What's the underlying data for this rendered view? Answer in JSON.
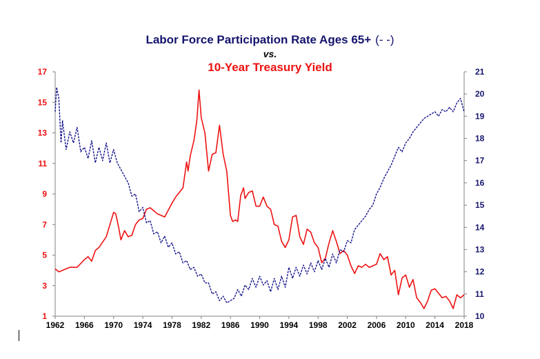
{
  "title": {
    "line1": "Labor Force Participation Rate Ages 65+",
    "line1_marker": "(- -)",
    "line2": "vs.",
    "line3": "10-Year Treasury Yield"
  },
  "colors": {
    "treasury": "#ee1111",
    "participation": "#14148c",
    "title_blue": "#14146e",
    "axis": "#808080"
  },
  "chart_data": {
    "type": "line",
    "title": "Labor Force Participation Rate Ages 65+ (- -) vs. 10-Year Treasury Yield",
    "x_ticks": [
      "1962",
      "1966",
      "1970",
      "1974",
      "1978",
      "1982",
      "1986",
      "1990",
      "1994",
      "1998",
      "2002",
      "2006",
      "2010",
      "2014",
      "2018"
    ],
    "xlim": [
      1962,
      2018
    ],
    "left_axis": {
      "ylim": [
        1,
        17
      ],
      "ticks": [
        "1",
        "3",
        "5",
        "7",
        "9",
        "11",
        "13",
        "15",
        "17"
      ]
    },
    "right_axis": {
      "ylim": [
        10,
        21
      ],
      "ticks": [
        "10",
        "11",
        "12",
        "13",
        "14",
        "15",
        "16",
        "17",
        "18",
        "19",
        "20",
        "21"
      ]
    },
    "grid": false,
    "series": [
      {
        "name": "10-Year Treasury Yield",
        "axis": "left",
        "style": "solid",
        "x": [
          1962.0,
          1962.5,
          1963.0,
          1964.0,
          1965.0,
          1966.0,
          1966.5,
          1967.0,
          1967.5,
          1968.0,
          1969.0,
          1969.5,
          1970.0,
          1970.3,
          1970.7,
          1971.0,
          1971.5,
          1972.0,
          1972.5,
          1973.0,
          1973.5,
          1974.0,
          1974.5,
          1975.0,
          1975.5,
          1976.0,
          1977.0,
          1978.0,
          1978.5,
          1979.0,
          1979.5,
          1980.0,
          1980.2,
          1980.5,
          1981.0,
          1981.4,
          1981.7,
          1982.0,
          1982.5,
          1983.0,
          1983.5,
          1984.0,
          1984.5,
          1985.0,
          1985.5,
          1986.0,
          1986.3,
          1986.7,
          1987.0,
          1987.4,
          1987.8,
          1988.0,
          1988.5,
          1989.0,
          1989.5,
          1990.0,
          1990.5,
          1991.0,
          1991.5,
          1992.0,
          1992.5,
          1993.0,
          1993.5,
          1994.0,
          1994.5,
          1995.0,
          1995.5,
          1996.0,
          1996.5,
          1997.0,
          1997.5,
          1998.0,
          1998.5,
          1999.0,
          1999.5,
          2000.0,
          2000.5,
          2001.0,
          2001.5,
          2002.0,
          2002.5,
          2003.0,
          2003.5,
          2004.0,
          2004.5,
          2005.0,
          2005.5,
          2006.0,
          2006.5,
          2007.0,
          2007.5,
          2008.0,
          2008.5,
          2009.0,
          2009.5,
          2010.0,
          2010.5,
          2011.0,
          2011.5,
          2012.0,
          2012.5,
          2013.0,
          2013.5,
          2014.0,
          2014.5,
          2015.0,
          2015.5,
          2016.0,
          2016.5,
          2017.0,
          2017.5,
          2018.0
        ],
        "values": [
          4.1,
          3.9,
          4.0,
          4.2,
          4.2,
          4.7,
          4.9,
          4.6,
          5.3,
          5.5,
          6.2,
          7.0,
          7.8,
          7.7,
          6.8,
          6.0,
          6.6,
          6.2,
          6.3,
          7.0,
          7.3,
          7.4,
          8.0,
          8.1,
          7.9,
          7.7,
          7.5,
          8.4,
          8.8,
          9.1,
          9.4,
          11.1,
          10.5,
          11.5,
          12.5,
          13.8,
          15.8,
          14.0,
          13.0,
          10.5,
          11.6,
          11.7,
          13.5,
          11.6,
          10.5,
          7.6,
          7.2,
          7.3,
          7.2,
          8.9,
          9.4,
          8.7,
          9.1,
          9.2,
          8.2,
          8.2,
          8.8,
          8.2,
          8.0,
          7.0,
          6.9,
          5.9,
          5.5,
          6.0,
          7.5,
          7.6,
          6.2,
          5.7,
          6.7,
          6.5,
          5.8,
          5.5,
          4.5,
          4.8,
          5.8,
          6.6,
          5.9,
          5.1,
          5.3,
          5.0,
          4.3,
          3.8,
          4.3,
          4.2,
          4.4,
          4.2,
          4.3,
          4.4,
          5.1,
          4.7,
          4.9,
          3.7,
          4.0,
          2.4,
          3.5,
          3.7,
          2.9,
          3.4,
          2.2,
          1.9,
          1.5,
          2.0,
          2.7,
          2.8,
          2.5,
          2.2,
          2.3,
          2.0,
          1.5,
          2.4,
          2.2,
          2.4
        ]
      },
      {
        "name": "Labor Force Participation Rate Ages 65+",
        "axis": "right",
        "style": "dashed",
        "x": [
          1962.0,
          1962.2,
          1962.5,
          1962.8,
          1963.0,
          1963.5,
          1964.0,
          1964.5,
          1965.0,
          1965.5,
          1966.0,
          1966.5,
          1967.0,
          1967.5,
          1968.0,
          1968.5,
          1969.0,
          1969.5,
          1970.0,
          1970.5,
          1971.0,
          1971.5,
          1972.0,
          1972.5,
          1973.0,
          1973.5,
          1974.0,
          1974.5,
          1975.0,
          1975.5,
          1976.0,
          1976.5,
          1977.0,
          1977.5,
          1978.0,
          1978.5,
          1979.0,
          1979.5,
          1980.0,
          1980.5,
          1981.0,
          1981.5,
          1982.0,
          1982.5,
          1983.0,
          1983.5,
          1984.0,
          1984.5,
          1985.0,
          1985.5,
          1986.0,
          1986.5,
          1987.0,
          1987.5,
          1988.0,
          1988.5,
          1989.0,
          1989.5,
          1990.0,
          1990.5,
          1991.0,
          1991.5,
          1992.0,
          1992.5,
          1993.0,
          1993.5,
          1994.0,
          1994.5,
          1995.0,
          1995.5,
          1996.0,
          1996.5,
          1997.0,
          1997.5,
          1998.0,
          1998.5,
          1999.0,
          1999.5,
          2000.0,
          2000.5,
          2001.0,
          2001.5,
          2002.0,
          2002.5,
          2003.0,
          2003.5,
          2004.0,
          2004.5,
          2005.0,
          2005.5,
          2006.0,
          2006.5,
          2007.0,
          2007.5,
          2008.0,
          2008.5,
          2009.0,
          2009.5,
          2010.0,
          2010.5,
          2011.0,
          2011.5,
          2012.0,
          2012.5,
          2013.0,
          2013.5,
          2014.0,
          2014.5,
          2015.0,
          2015.5,
          2016.0,
          2016.5,
          2017.0,
          2017.5,
          2018.0
        ],
        "values": [
          19.2,
          20.3,
          19.8,
          17.8,
          18.8,
          17.5,
          18.3,
          17.8,
          18.5,
          17.4,
          17.6,
          17.1,
          17.9,
          16.9,
          17.6,
          17.0,
          17.8,
          16.9,
          17.5,
          16.9,
          16.6,
          16.3,
          16.0,
          15.4,
          15.5,
          14.7,
          14.9,
          14.2,
          14.3,
          13.7,
          13.8,
          13.3,
          13.6,
          13.1,
          13.3,
          12.8,
          12.9,
          12.4,
          12.5,
          12.1,
          12.2,
          11.8,
          11.9,
          11.5,
          11.5,
          11.0,
          11.1,
          10.7,
          10.9,
          10.6,
          10.7,
          10.8,
          11.2,
          10.9,
          11.4,
          11.2,
          11.7,
          11.3,
          11.8,
          11.4,
          11.6,
          11.1,
          11.7,
          11.2,
          11.8,
          11.3,
          12.2,
          11.7,
          12.2,
          11.8,
          12.3,
          11.9,
          12.4,
          12.0,
          12.5,
          12.1,
          12.6,
          12.2,
          12.8,
          12.4,
          13.0,
          12.9,
          13.4,
          13.3,
          13.9,
          14.1,
          14.3,
          14.5,
          14.8,
          15.0,
          15.5,
          15.8,
          16.2,
          16.5,
          16.8,
          17.2,
          17.6,
          17.4,
          17.8,
          18.0,
          18.3,
          18.5,
          18.7,
          18.9,
          19.0,
          19.1,
          19.2,
          19.0,
          19.3,
          19.2,
          19.4,
          19.2,
          19.6,
          19.8,
          19.2
        ]
      }
    ]
  },
  "left_tick_labels": [
    "1",
    "3",
    "5",
    "7",
    "9",
    "11",
    "13",
    "15",
    "17"
  ],
  "right_tick_labels": [
    "10",
    "11",
    "12",
    "13",
    "14",
    "15",
    "16",
    "17",
    "18",
    "19",
    "20",
    "21"
  ],
  "x_tick_labels": [
    "1962",
    "1966",
    "1970",
    "1974",
    "1978",
    "1982",
    "1986",
    "1990",
    "1994",
    "1998",
    "2002",
    "2006",
    "2010",
    "2014",
    "2018"
  ]
}
